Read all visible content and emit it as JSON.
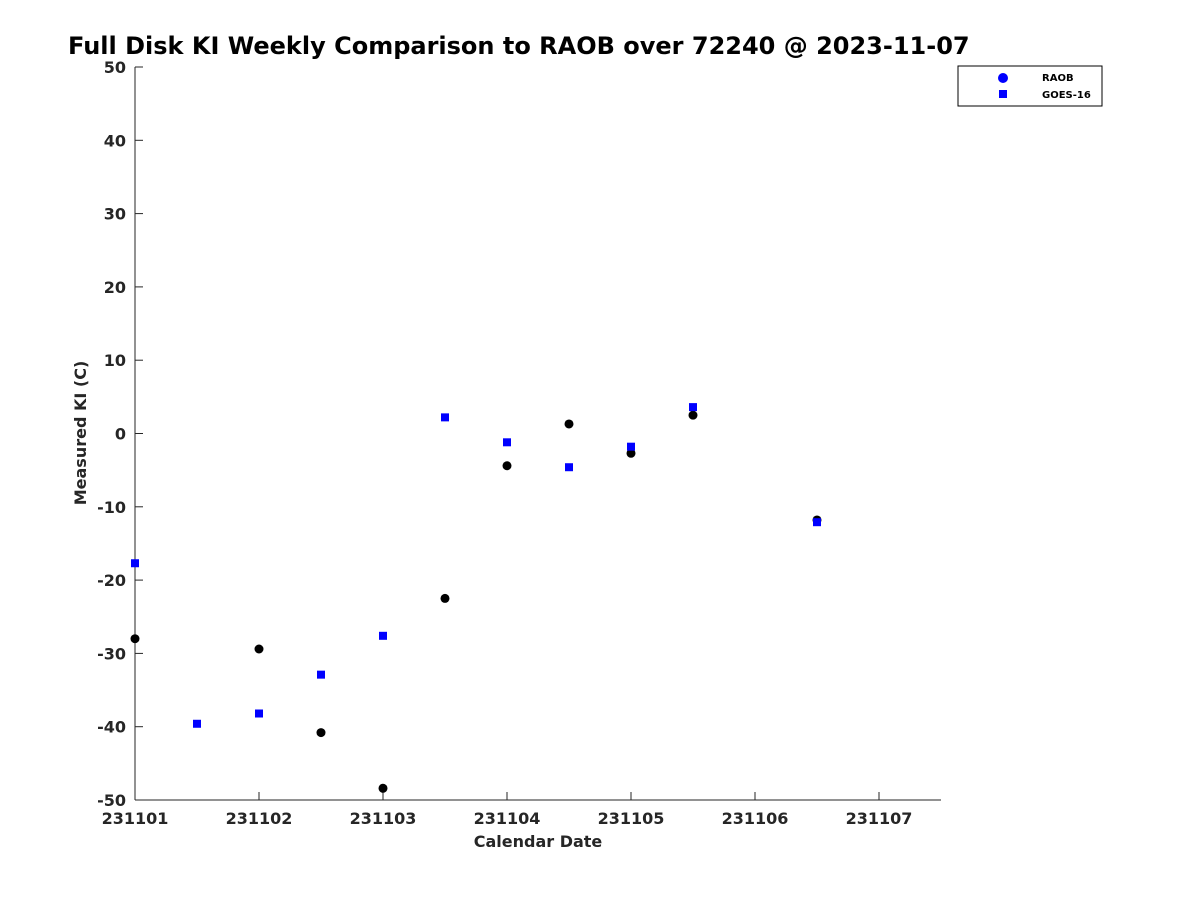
{
  "chart_data": {
    "type": "scatter",
    "title": "Full Disk KI Weekly Comparison to RAOB over 72240 @ 2023-11-07",
    "xlabel": "Calendar Date",
    "ylabel": "Measured KI (C)",
    "xlim": [
      0,
      6.5
    ],
    "ylim": [
      -50,
      50
    ],
    "xticks": [
      0,
      1,
      2,
      3,
      4,
      5,
      6
    ],
    "xticklabels": [
      "231101",
      "231102",
      "231103",
      "231104",
      "231105",
      "231106",
      "231107"
    ],
    "yticks": [
      -50,
      -40,
      -30,
      -20,
      -10,
      0,
      10,
      20,
      30,
      40,
      50
    ],
    "yticklabels": [
      "-50",
      "-40",
      "-30",
      "-20",
      "-10",
      "0",
      "10",
      "20",
      "30",
      "40",
      "50"
    ],
    "grid": false,
    "legend_position": "top-right",
    "series": [
      {
        "name": "RAOB",
        "marker": "circle",
        "color": "#000000",
        "legend_color": "#0000ff",
        "x": [
          0,
          1,
          1.5,
          2,
          2.5,
          3,
          3.5,
          4,
          4.5,
          5.5
        ],
        "y": [
          -28.0,
          -29.4,
          -40.8,
          -48.4,
          -22.5,
          -4.4,
          1.3,
          -2.7,
          2.5,
          -11.8
        ]
      },
      {
        "name": "GOES-16",
        "marker": "square",
        "color": "#0000ff",
        "legend_color": "#0000ff",
        "x": [
          0,
          0.5,
          1,
          1.5,
          2,
          2.5,
          3,
          3.5,
          4,
          4.5,
          5.5
        ],
        "y": [
          -17.7,
          -39.6,
          -38.2,
          -32.9,
          -27.6,
          2.2,
          -1.2,
          -4.6,
          -1.8,
          3.6,
          -12.1
        ]
      }
    ]
  }
}
